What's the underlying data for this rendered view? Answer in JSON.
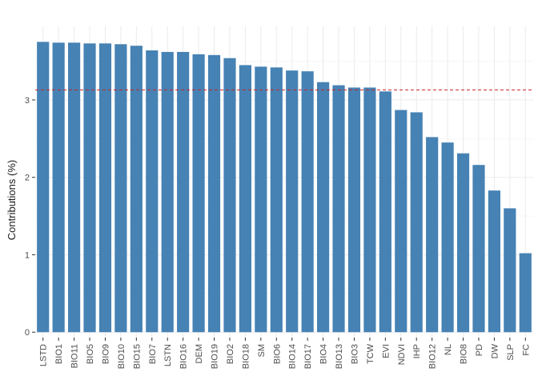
{
  "chart_data": {
    "type": "bar",
    "title": "",
    "xlabel": "",
    "ylabel": "Contributions (%)",
    "ylim": [
      -0.07,
      3.95
    ],
    "yticks": [
      0,
      1,
      2,
      3
    ],
    "grid": true,
    "categories": [
      "LSTD",
      "BIO1",
      "BIO11",
      "BIO5",
      "BIO9",
      "BIO10",
      "BIO15",
      "BIO7",
      "LSTN",
      "BIO16",
      "DEM",
      "BIO19",
      "BIO2",
      "BIO18",
      "SM",
      "BIO6",
      "BIO14",
      "BIO17",
      "BIO4",
      "BIO13",
      "BIO3",
      "TCW",
      "EVI",
      "NDVI",
      "IHP",
      "BIO12",
      "NL",
      "BIO8",
      "PD",
      "DW",
      "SLP",
      "FC"
    ],
    "values": [
      3.75,
      3.74,
      3.74,
      3.73,
      3.73,
      3.72,
      3.7,
      3.64,
      3.62,
      3.62,
      3.59,
      3.58,
      3.54,
      3.45,
      3.43,
      3.42,
      3.38,
      3.37,
      3.23,
      3.19,
      3.16,
      3.16,
      3.11,
      2.87,
      2.84,
      2.52,
      2.45,
      2.31,
      2.16,
      1.83,
      1.6,
      1.02
    ],
    "bar_color": "#4682B4",
    "reference_line": {
      "value": 3.13,
      "style": "dashed",
      "color": "#CC2222"
    },
    "x_tick_rotation": "vertical"
  }
}
